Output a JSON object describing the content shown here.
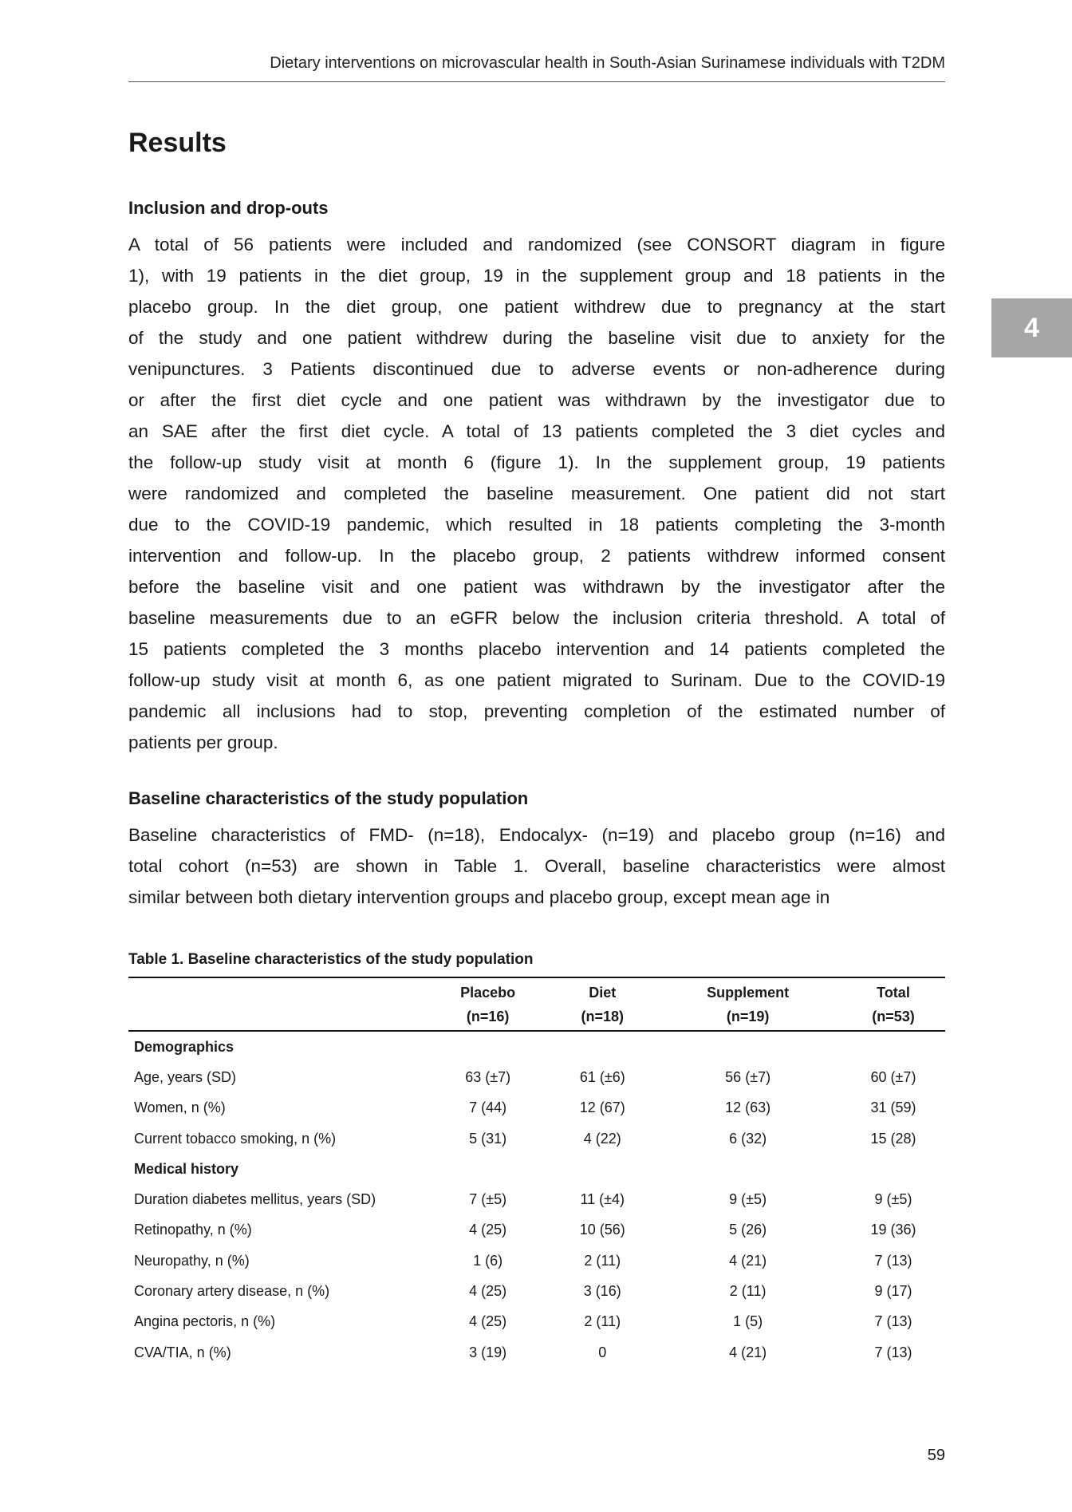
{
  "running_head": "Dietary interventions on microvascular health in South-Asian Surinamese individuals with T2DM",
  "chapter_tab": "4",
  "section_title": "Results",
  "subsections": [
    {
      "heading": "Inclusion and drop-outs",
      "lines": [
        "A total of 56 patients were included and randomized (see CONSORT diagram in figure",
        "1), with 19 patients in the diet group, 19 in the supplement group and 18 patients in the",
        "placebo group. In the diet group, one patient withdrew due to pregnancy at the start",
        "of the study and one patient withdrew during the baseline visit due to anxiety for the",
        "venipunctures. 3 Patients discontinued due to adverse events or non-adherence during",
        "or after the first diet cycle and one patient was withdrawn by the investigator due to",
        "an SAE after the first diet cycle. A total of 13 patients completed the 3 diet cycles and",
        "the follow-up study visit at month 6 (figure 1). In the supplement group, 19 patients",
        "were randomized and completed the baseline measurement. One patient did not start",
        "due to the COVID-19 pandemic, which resulted in 18 patients completing the 3-month",
        "intervention and follow-up. In the placebo group, 2 patients withdrew informed consent",
        "before the baseline visit and one patient was withdrawn by the investigator after the",
        "baseline measurements due to an eGFR below the inclusion criteria threshold. A total of",
        "15 patients completed the 3 months placebo intervention and 14 patients completed the",
        "follow-up study visit at month 6, as one patient migrated to Surinam. Due to the COVID-19",
        "pandemic all inclusions had to stop, preventing completion of the estimated number of",
        "patients per group."
      ]
    },
    {
      "heading": "Baseline characteristics of the study population",
      "lines": [
        "Baseline characteristics of FMD- (n=18), Endocalyx- (n=19) and placebo group (n=16) and",
        "total cohort (n=53) are shown in Table 1. Overall, baseline characteristics were almost",
        "similar between both dietary intervention groups and placebo group, except mean age in"
      ]
    }
  ],
  "table": {
    "title": "Table 1. Baseline characteristics of the study population",
    "columns": [
      {
        "name": "Placebo",
        "n": "(n=16)"
      },
      {
        "name": "Diet",
        "n": "(n=18)"
      },
      {
        "name": "Supplement",
        "n": "(n=19)"
      },
      {
        "name": "Total",
        "n": "(n=53)"
      }
    ],
    "sections": [
      {
        "title": "Demographics",
        "rows": [
          {
            "label": "Age, years (SD)",
            "values": [
              "63 (±7)",
              "61 (±6)",
              "56 (±7)",
              "60 (±7)"
            ]
          },
          {
            "label": "Women, n (%)",
            "values": [
              "7 (44)",
              "12 (67)",
              "12 (63)",
              "31 (59)"
            ]
          },
          {
            "label": "Current tobacco smoking, n (%)",
            "values": [
              "5 (31)",
              "4 (22)",
              "6 (32)",
              "15 (28)"
            ]
          }
        ]
      },
      {
        "title": "Medical history",
        "rows": [
          {
            "label": "Duration diabetes mellitus, years (SD)",
            "values": [
              "7 (±5)",
              "11 (±4)",
              "9 (±5)",
              "9 (±5)"
            ]
          },
          {
            "label": "Retinopathy, n (%)",
            "values": [
              "4 (25)",
              "10 (56)",
              "5 (26)",
              "19 (36)"
            ]
          },
          {
            "label": "Neuropathy, n (%)",
            "values": [
              "1 (6)",
              "2 (11)",
              "4 (21)",
              "7 (13)"
            ]
          },
          {
            "label": "Coronary artery disease, n (%)",
            "values": [
              "4 (25)",
              "3 (16)",
              "2 (11)",
              "9 (17)"
            ]
          },
          {
            "label": "Angina pectoris, n (%)",
            "values": [
              "4 (25)",
              "2 (11)",
              "1 (5)",
              "7 (13)"
            ]
          },
          {
            "label": "CVA/TIA, n (%)",
            "values": [
              "3 (19)",
              "0",
              "4 (21)",
              "7 (13)"
            ]
          }
        ]
      }
    ]
  },
  "page_number": "59",
  "colors": {
    "chapter_tab": "#a6a6a6"
  }
}
